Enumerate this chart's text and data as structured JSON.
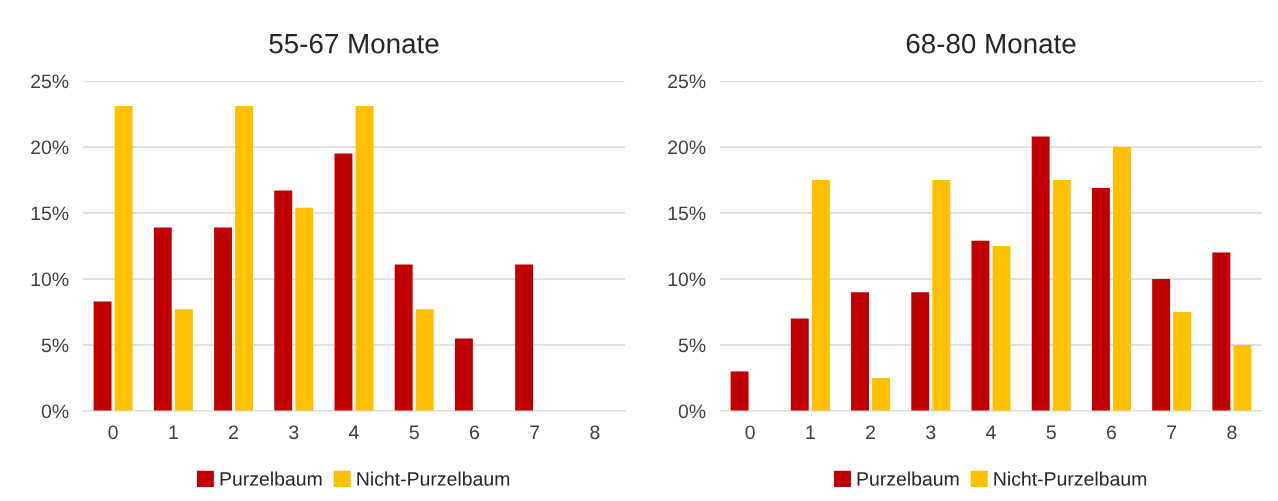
{
  "chart_data": [
    {
      "type": "bar",
      "title": "55-67 Monate",
      "categories": [
        "0",
        "1",
        "2",
        "3",
        "4",
        "5",
        "6",
        "7",
        "8"
      ],
      "series": [
        {
          "name": "Purzelbaum",
          "color": "#c00000",
          "values": [
            8.3,
            13.9,
            13.9,
            16.7,
            19.5,
            11.1,
            5.5,
            11.1,
            0
          ]
        },
        {
          "name": "Nicht-Purzelbaum",
          "color": "#ffc000",
          "values": [
            23.1,
            7.7,
            23.1,
            15.4,
            23.1,
            7.7,
            0,
            0,
            0
          ]
        }
      ],
      "ylim": [
        0,
        25
      ],
      "yticks": [
        {
          "value": 0,
          "label": "0%"
        },
        {
          "value": 5,
          "label": "5%"
        },
        {
          "value": 10,
          "label": "10%"
        },
        {
          "value": 15,
          "label": "15%"
        },
        {
          "value": 20,
          "label": "20%"
        },
        {
          "value": 25,
          "label": "25%"
        }
      ],
      "grid": "y",
      "legend": "bottom"
    },
    {
      "type": "bar",
      "title": "68-80 Monate",
      "categories": [
        "0",
        "1",
        "2",
        "3",
        "4",
        "5",
        "6",
        "7",
        "8"
      ],
      "series": [
        {
          "name": "Purzelbaum",
          "color": "#c00000",
          "values": [
            3,
            7,
            9,
            9,
            12.9,
            20.8,
            16.9,
            10,
            12
          ]
        },
        {
          "name": "Nicht-Purzelbaum",
          "color": "#ffc000",
          "values": [
            0,
            17.5,
            2.5,
            17.5,
            12.5,
            17.5,
            20,
            7.5,
            5
          ]
        }
      ],
      "ylim": [
        0,
        25
      ],
      "yticks": [
        {
          "value": 0,
          "label": "0%"
        },
        {
          "value": 5,
          "label": "5%"
        },
        {
          "value": 10,
          "label": "10%"
        },
        {
          "value": 15,
          "label": "15%"
        },
        {
          "value": 20,
          "label": "20%"
        },
        {
          "value": 25,
          "label": "25%"
        }
      ],
      "grid": "y",
      "legend": "bottom"
    }
  ]
}
